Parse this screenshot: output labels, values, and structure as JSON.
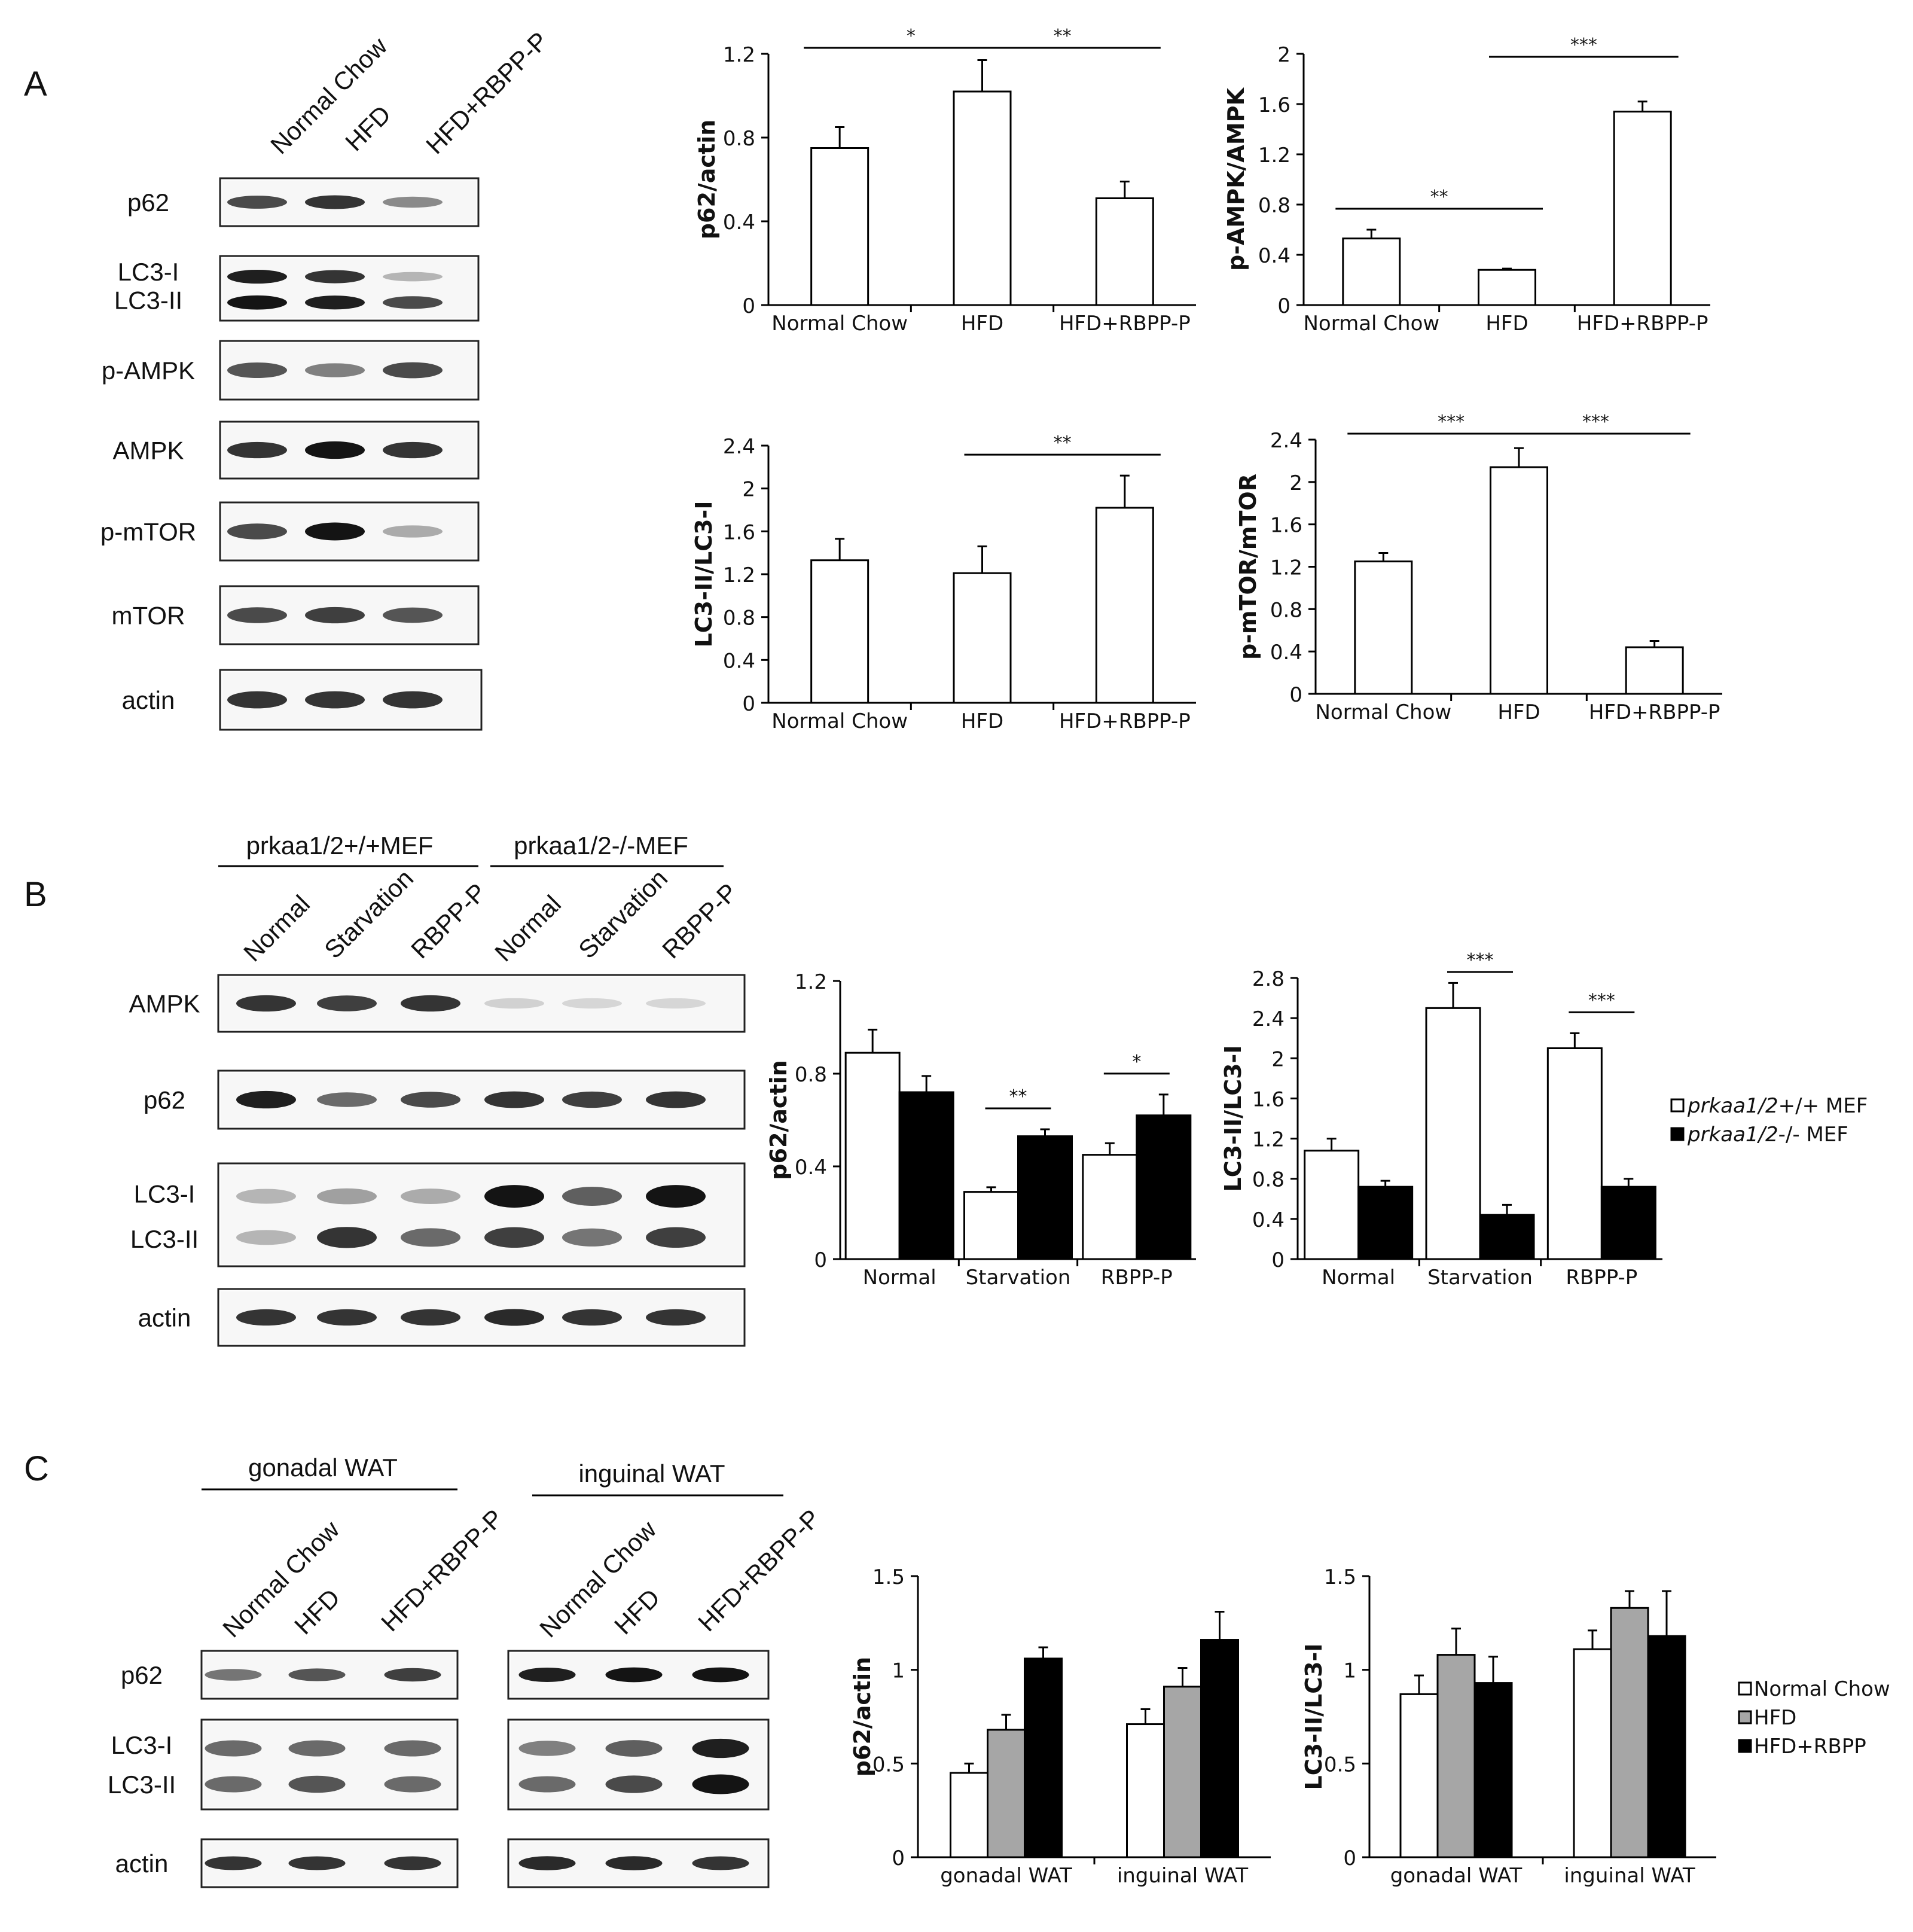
{
  "panels": {
    "A": {
      "letter": "A",
      "lanes": [
        "Normal Chow",
        "HFD",
        "HFD+RBPP-P"
      ],
      "rows": [
        {
          "labels": [
            "p62"
          ],
          "bands": [
            [
              0.75,
              0.85,
              0.45
            ]
          ]
        },
        {
          "labels": [
            "LC3-I",
            "LC3-II"
          ],
          "bands": [
            [
              0.95,
              0.85,
              0.25
            ],
            [
              1.0,
              0.95,
              0.75
            ]
          ]
        },
        {
          "labels": [
            "p-AMPK"
          ],
          "bands": [
            [
              0.7,
              0.5,
              0.75
            ]
          ]
        },
        {
          "labels": [
            "AMPK"
          ],
          "bands": [
            [
              0.85,
              1.0,
              0.85
            ]
          ]
        },
        {
          "labels": [
            "p-mTOR"
          ],
          "bands": [
            [
              0.75,
              1.0,
              0.3
            ]
          ]
        },
        {
          "labels": [
            "mTOR"
          ],
          "bands": [
            [
              0.75,
              0.8,
              0.7
            ]
          ]
        },
        {
          "labels": [
            "actin"
          ],
          "bands": [
            [
              0.85,
              0.85,
              0.85
            ]
          ]
        }
      ]
    },
    "B": {
      "letter": "B",
      "groups": [
        "prkaa1/2+/+MEF",
        "prkaa1/2-/-MEF"
      ],
      "lanes": [
        "Normal",
        "Starvation",
        "RBPP-P",
        "Normal",
        "Starvation",
        "RBPP-P"
      ],
      "rows": [
        {
          "labels": [
            "AMPK"
          ],
          "bands": [
            [
              0.85,
              0.8,
              0.85,
              0.12,
              0.1,
              0.1
            ]
          ]
        },
        {
          "labels": [
            "p62"
          ],
          "bands": [
            [
              0.95,
              0.6,
              0.75,
              0.85,
              0.8,
              0.85
            ]
          ]
        },
        {
          "labels": [
            "LC3-I",
            "LC3-II"
          ],
          "bands": [
            [
              0.25,
              0.35,
              0.3,
              1.0,
              0.65,
              1.0
            ],
            [
              0.25,
              0.85,
              0.6,
              0.8,
              0.55,
              0.8
            ]
          ]
        },
        {
          "labels": [
            "actin"
          ],
          "bands": [
            [
              0.85,
              0.85,
              0.85,
              0.9,
              0.85,
              0.85
            ]
          ]
        }
      ]
    },
    "C": {
      "letter": "C",
      "groups": [
        "gonadal WAT",
        "inguinal WAT"
      ],
      "lanes": [
        "Normal Chow",
        "HFD",
        "HFD+RBPP-P"
      ],
      "rows": [
        {
          "labels": [
            "p62"
          ],
          "bands": [
            [
              0.55,
              0.7,
              0.8,
              0.95,
              1.0,
              1.0
            ]
          ]
        },
        {
          "labels": [
            "LC3-I",
            "LC3-II"
          ],
          "bands": [
            [
              0.6,
              0.6,
              0.6,
              0.5,
              0.65,
              0.95
            ],
            [
              0.6,
              0.7,
              0.6,
              0.6,
              0.75,
              1.0
            ]
          ]
        },
        {
          "labels": [
            "actin"
          ],
          "bands": [
            [
              0.85,
              0.85,
              0.85,
              0.9,
              0.9,
              0.85
            ]
          ]
        }
      ]
    }
  },
  "legends": {
    "B": [
      {
        "label": "prkaa1/2+/+ MEF",
        "italic": "prkaa1/2",
        "suffix": "+/+ MEF",
        "fill": "#ffffff"
      },
      {
        "label": "prkaa1/2-/- MEF",
        "italic": "prkaa1/2",
        "suffix": "-/- MEF",
        "fill": "#000000"
      }
    ],
    "C": [
      {
        "label": "Normal Chow",
        "fill": "#ffffff"
      },
      {
        "label": "HFD",
        "fill": "#a6a6a6"
      },
      {
        "label": "HFD+RBPP",
        "fill": "#000000"
      }
    ]
  },
  "chart_data": [
    {
      "type": "bar",
      "panel": "A",
      "ylabel": "p62/actin",
      "ylim": [
        0,
        1.2
      ],
      "ticks": [
        "0",
        "0.4",
        "0.8",
        "1.2"
      ],
      "categories": [
        "Normal Chow",
        "HFD",
        "HFD+RBPP-P"
      ],
      "series": [
        {
          "values": [
            0.75,
            1.02,
            0.51
          ],
          "errors": [
            0.1,
            0.15,
            0.08
          ],
          "fill": "#ffffff"
        }
      ],
      "significance": [
        {
          "from": 0,
          "to": 1,
          "label": "*"
        },
        {
          "from": 1,
          "to": 2,
          "label": "**"
        }
      ]
    },
    {
      "type": "bar",
      "panel": "A",
      "ylabel": "p-AMPK/AMPK",
      "ylim": [
        0,
        2
      ],
      "ticks": [
        "0",
        "0.4",
        "0.8",
        "1.2",
        "1.6",
        "2"
      ],
      "categories": [
        "Normal Chow",
        "HFD",
        "HFD+RBPP-P"
      ],
      "series": [
        {
          "values": [
            0.53,
            0.28,
            1.54
          ],
          "errors": [
            0.07,
            0.01,
            0.08
          ],
          "fill": "#ffffff"
        }
      ],
      "significance": [
        {
          "from": 0,
          "to": 1,
          "label": "**"
        },
        {
          "from": 1,
          "to": 2,
          "label": "***"
        }
      ]
    },
    {
      "type": "bar",
      "panel": "A",
      "ylabel": "LC3-II/LC3-I",
      "ylim": [
        0,
        2.4
      ],
      "ticks": [
        "0",
        "0.4",
        "0.8",
        "1.2",
        "1.6",
        "2",
        "2.4"
      ],
      "categories": [
        "Normal Chow",
        "HFD",
        "HFD+RBPP-P"
      ],
      "series": [
        {
          "values": [
            1.33,
            1.21,
            1.82
          ],
          "errors": [
            0.2,
            0.25,
            0.3
          ],
          "fill": "#ffffff"
        }
      ],
      "significance": [
        {
          "from": 1,
          "to": 2,
          "label": "**"
        }
      ]
    },
    {
      "type": "bar",
      "panel": "A",
      "ylabel": "p-mTOR/mTOR",
      "ylim": [
        0,
        2.4
      ],
      "ticks": [
        "0",
        "0.4",
        "0.8",
        "1.2",
        "1.6",
        "2",
        "2.4"
      ],
      "categories": [
        "Normal Chow",
        "HFD",
        "HFD+RBPP-P"
      ],
      "series": [
        {
          "values": [
            1.25,
            2.14,
            0.44
          ],
          "errors": [
            0.08,
            0.18,
            0.06
          ],
          "fill": "#ffffff"
        }
      ],
      "significance": [
        {
          "from": 0,
          "to": 1,
          "label": "***"
        },
        {
          "from": 1,
          "to": 2,
          "label": "***"
        }
      ]
    },
    {
      "type": "bar",
      "panel": "B",
      "ylabel": "p62/actin",
      "ylim": [
        0,
        1.2
      ],
      "ticks": [
        "0",
        "0.4",
        "0.8",
        "1.2"
      ],
      "categories": [
        "Normal",
        "Starvation",
        "RBPP-P"
      ],
      "series": [
        {
          "name": "prkaa1/2+/+ MEF",
          "values": [
            0.89,
            0.29,
            0.45
          ],
          "errors": [
            0.1,
            0.02,
            0.05
          ],
          "fill": "#ffffff"
        },
        {
          "name": "prkaa1/2-/- MEF",
          "values": [
            0.72,
            0.53,
            0.62
          ],
          "errors": [
            0.07,
            0.03,
            0.09
          ],
          "fill": "#000000"
        }
      ],
      "significance": [
        {
          "category": 1,
          "label": "**"
        },
        {
          "category": 2,
          "label": "*"
        }
      ]
    },
    {
      "type": "bar",
      "panel": "B",
      "ylabel": "LC3-II/LC3-I",
      "ylim": [
        0,
        2.8
      ],
      "ticks": [
        "0",
        "0.4",
        "0.8",
        "1.2",
        "1.6",
        "2",
        "2.4",
        "2.8"
      ],
      "categories": [
        "Normal",
        "Starvation",
        "RBPP-P"
      ],
      "series": [
        {
          "name": "prkaa1/2+/+ MEF",
          "values": [
            1.08,
            2.5,
            2.1
          ],
          "errors": [
            0.12,
            0.25,
            0.15
          ],
          "fill": "#ffffff"
        },
        {
          "name": "prkaa1/2-/- MEF",
          "values": [
            0.72,
            0.44,
            0.72
          ],
          "errors": [
            0.06,
            0.1,
            0.08
          ],
          "fill": "#000000"
        }
      ],
      "significance": [
        {
          "category": 1,
          "label": "***"
        },
        {
          "category": 2,
          "label": "***"
        }
      ]
    },
    {
      "type": "bar",
      "panel": "C",
      "ylabel": "p62/actin",
      "ylim": [
        0,
        1.5
      ],
      "ticks": [
        "0",
        "0.5",
        "1",
        "1.5"
      ],
      "categories": [
        "gonadal WAT",
        "inguinal WAT"
      ],
      "series": [
        {
          "name": "Normal Chow",
          "values": [
            0.45,
            0.71
          ],
          "errors": [
            0.05,
            0.08
          ],
          "fill": "#ffffff"
        },
        {
          "name": "HFD",
          "values": [
            0.68,
            0.91
          ],
          "errors": [
            0.08,
            0.1
          ],
          "fill": "#a6a6a6"
        },
        {
          "name": "HFD+RBPP",
          "values": [
            1.06,
            1.16
          ],
          "errors": [
            0.06,
            0.15
          ],
          "fill": "#000000"
        }
      ],
      "significance": []
    },
    {
      "type": "bar",
      "panel": "C",
      "ylabel": "LC3-II/LC3-I",
      "ylim": [
        0,
        1.5
      ],
      "ticks": [
        "0",
        "0.5",
        "1",
        "1.5"
      ],
      "categories": [
        "gonadal WAT",
        "inguinal WAT"
      ],
      "series": [
        {
          "name": "Normal Chow",
          "values": [
            0.87,
            1.11
          ],
          "errors": [
            0.1,
            0.1
          ],
          "fill": "#ffffff"
        },
        {
          "name": "HFD",
          "values": [
            1.08,
            1.33
          ],
          "errors": [
            0.14,
            0.09
          ],
          "fill": "#a6a6a6"
        },
        {
          "name": "HFD+RBPP",
          "values": [
            0.93,
            1.18
          ],
          "errors": [
            0.14,
            0.24
          ],
          "fill": "#000000"
        }
      ],
      "significance": []
    }
  ]
}
